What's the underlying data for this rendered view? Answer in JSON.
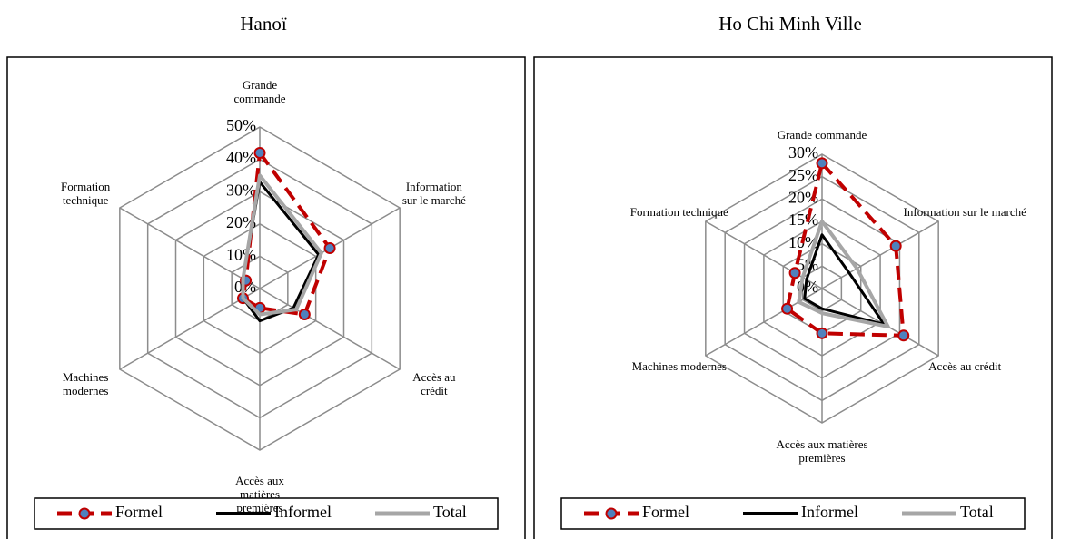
{
  "chart_data": [
    {
      "type": "radar",
      "title": "Hanoï",
      "categories": [
        "Grande commande",
        "Information sur le marché",
        "Accès au crédit",
        "Accès aux matières premières",
        "Machines modernes",
        "Formation technique"
      ],
      "ylim": [
        0,
        50
      ],
      "yticks": [
        {
          "value": 0,
          "label": "0%"
        },
        {
          "value": 10,
          "label": "10%"
        },
        {
          "value": 20,
          "label": "20%"
        },
        {
          "value": 30,
          "label": "30%"
        },
        {
          "value": 40,
          "label": "40%"
        },
        {
          "value": 50,
          "label": "50%"
        }
      ],
      "series": [
        {
          "name": "Formel",
          "color": "#c00000",
          "dashed": true,
          "markers": true,
          "values": [
            42,
            25,
            16,
            6,
            6,
            5
          ]
        },
        {
          "name": "Informel",
          "color": "#000000",
          "values": [
            33,
            21,
            12,
            10,
            6,
            6
          ]
        },
        {
          "name": "Total",
          "color": "#a6a6a6",
          "values": [
            35,
            22,
            13,
            8,
            6,
            6
          ]
        }
      ]
    },
    {
      "type": "radar",
      "title": "Ho Chi Minh Ville",
      "categories": [
        "Grande commande",
        "Information sur le marché",
        "Accès au crédit",
        "Accès aux matières premières",
        "Machines modernes",
        "Formation technique"
      ],
      "ylim": [
        0,
        30
      ],
      "yticks": [
        {
          "value": 0,
          "label": "0%"
        },
        {
          "value": 5,
          "label": "5%"
        },
        {
          "value": 10,
          "label": "10%"
        },
        {
          "value": 15,
          "label": "15%"
        },
        {
          "value": 20,
          "label": "20%"
        },
        {
          "value": 25,
          "label": "25%"
        },
        {
          "value": 30,
          "label": "30%"
        }
      ],
      "series": [
        {
          "name": "Formel",
          "color": "#c00000",
          "dashed": true,
          "markers": true,
          "values": [
            28,
            19,
            21,
            10,
            9,
            7
          ]
        },
        {
          "name": "Informel",
          "color": "#000000",
          "values": [
            12,
            7,
            16,
            4.5,
            4.5,
            4
          ]
        },
        {
          "name": "Total",
          "color": "#a6a6a6",
          "values": [
            15,
            9,
            17,
            5.5,
            6,
            5
          ]
        }
      ]
    }
  ]
}
